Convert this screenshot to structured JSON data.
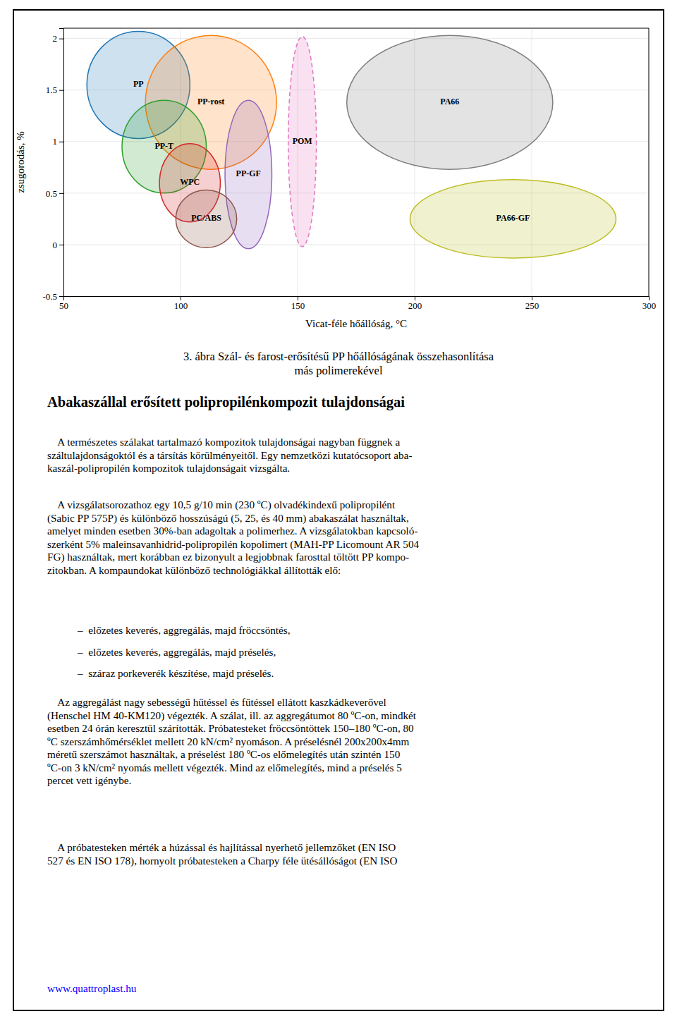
{
  "chart_data": {
    "type": "ellipse",
    "xlabel": "Vicat-féle hőállóság, °C",
    "ylabel": "zsugorodás, %",
    "xlim": [
      50,
      300
    ],
    "ylim": [
      -0.5,
      2.1
    ],
    "xticks": [
      50,
      100,
      150,
      200,
      250,
      300
    ],
    "yticks": [
      -0.5,
      0,
      0.5,
      1,
      1.5,
      2
    ],
    "grid": true,
    "series": [
      {
        "name": "PP",
        "x": 82,
        "y": 1.55,
        "rx": 22,
        "ry": 0.52
      },
      {
        "name": "PP-rost",
        "x": 113,
        "y": 1.38,
        "rx": 28,
        "ry": 0.65
      },
      {
        "name": "PP-T",
        "x": 93,
        "y": 0.95,
        "rx": 18,
        "ry": 0.45
      },
      {
        "name": "WPC",
        "x": 104,
        "y": 0.6,
        "rx": 13,
        "ry": 0.38
      },
      {
        "name": "PP-GF",
        "x": 129,
        "y": 0.68,
        "rx": 10,
        "ry": 0.72
      },
      {
        "name": "PC/ABS",
        "x": 111,
        "y": 0.25,
        "rx": 13,
        "ry": 0.28
      },
      {
        "name": "POM",
        "x": 152,
        "y": 1.0,
        "rx": 6,
        "ry": 1.02,
        "line_style": "dashed"
      },
      {
        "name": "PA66",
        "x": 215,
        "y": 1.38,
        "rx": 44,
        "ry": 0.65
      },
      {
        "name": "PA66-GF",
        "x": 242,
        "y": 0.25,
        "rx": 44,
        "ry": 0.38
      }
    ]
  },
  "caption": [
    "3. ábra Szál- és farost-erősítésű PP hőállóságának összehasonlítása",
    "más polimerekével"
  ],
  "heading": "Abakaszállal erősített polipropilénkompozit tulajdonságai",
  "paragraphs": [
    [
      "    A természetes szálakat tartalmazó kompozitok tulajdonságai nagyban függnek a",
      "száltulajdonságoktól és a társítás körülményeitől. Egy nemzetközi kutatócsoport aba-",
      "kaszál-polipropilén kompozitok tulajdonságait vizsgálta."
    ],
    [
      "    A vizsgálatsorozathoz egy 10,5 g/10 min (230 ºC) olvadékindexű polipropilént",
      "(Sabic PP 575P) és különböző hosszúságú (5, 25, és 40 mm) abakaszálat használtak,",
      "amelyet minden esetben 30%-ban adagoltak a polimerhez. A vizsgálatokban kapcsoló-",
      "szerként 5% maleinsavanhidrid-polipropilén kopolimert (MAH-PP Licomount AR 504",
      "FG) használtak, mert korábban ez bizonyult a legjobbnak farosttal töltött PP kompo-",
      "zitokban. A kompaundokat különböző technológiákkal állították elő:"
    ],
    [
      "    Az aggregálást nagy sebességű hűtéssel és fűtéssel ellátott kaszkádkeverővel",
      "(Henschel HM 40-KM120) végezték. A szálat, ill. az aggregátumot 80 ºC-on, mindkét",
      "esetben 24 órán keresztül szárították. Próbatesteket fröccsöntöttek 150–180 ºC-on, 80",
      "ºC szerszámhőmérséklet mellett 20 kN/cm² nyomáson. A préselésnél 200x200x4mm",
      "méretű szerszámot használtak, a préselést 180 ºC-os előmelegítés után szintén 150",
      "ºC-on 3 kN/cm² nyomás mellett végezték. Mind az előmelegítés, mind a préselés 5",
      "percet vett igénybe."
    ],
    [
      "    A próbatesteken mérték a húzással és hajlítással nyerhető jellemzőket (EN ISO",
      "527 és EN ISO 178), hornyolt próbatesteken a Charpy féle ütésállóságot (EN ISO"
    ]
  ],
  "bullets": [
    "–  előzetes keverés, aggregálás, majd fröccsöntés,",
    "–  előzetes keverés, aggregálás, majd préselés,",
    "–  száraz porkeverék készítése, majd préselés."
  ],
  "url": {
    "text": "www.quattroplast.hu",
    "color": "blue"
  }
}
